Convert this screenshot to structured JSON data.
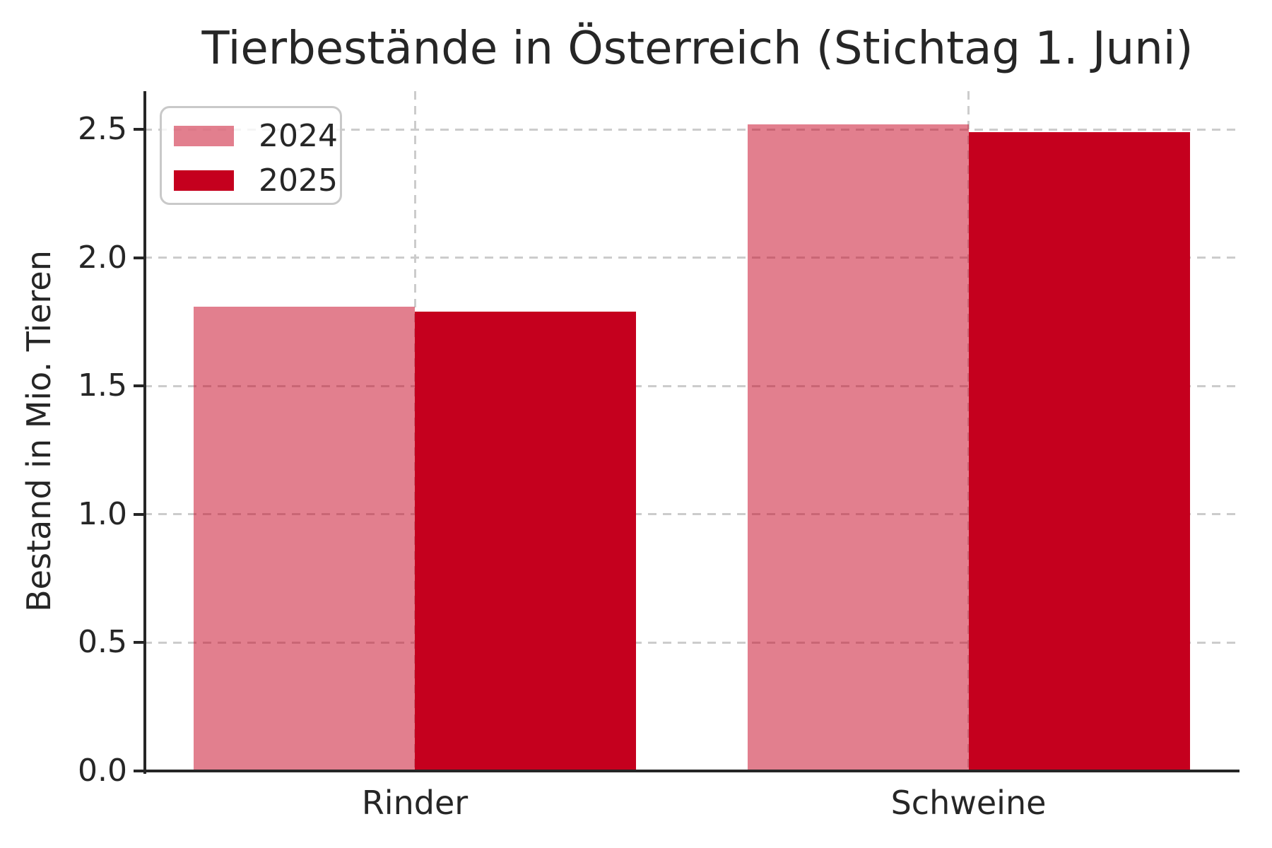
{
  "chart_data": {
    "type": "bar",
    "title": "Tierbestände in Österreich (Stichtag 1. Juni)",
    "ylabel": "Bestand in Mio. Tieren",
    "xlabel": "",
    "categories": [
      "Rinder",
      "Schweine"
    ],
    "series": [
      {
        "name": "2024",
        "values": [
          1.81,
          2.52
        ],
        "color": "#C5001E",
        "alpha": 0.5
      },
      {
        "name": "2025",
        "values": [
          1.79,
          2.49
        ],
        "color": "#C5001E",
        "alpha": 1.0
      }
    ],
    "bar_width": 0.4,
    "ylim": [
      0,
      2.65
    ],
    "yticks": [
      0,
      0.5,
      1,
      1.5,
      2,
      2.5
    ],
    "ytick_labels": [
      "0.0",
      "0.5",
      "1.0",
      "1.5",
      "2.0",
      "2.5"
    ],
    "grid": {
      "axis": "both",
      "style": "dashed",
      "color": "#CCCCCC"
    },
    "legend": {
      "position": "upper left",
      "entries": [
        "2024",
        "2025"
      ]
    },
    "colors": {
      "bar_2024_effective": "#E2808F",
      "bar_2025": "#C5001E",
      "axis": "#262626",
      "text": "#262626",
      "grid": "#CCCCCC",
      "background": "#FFFFFF"
    }
  }
}
